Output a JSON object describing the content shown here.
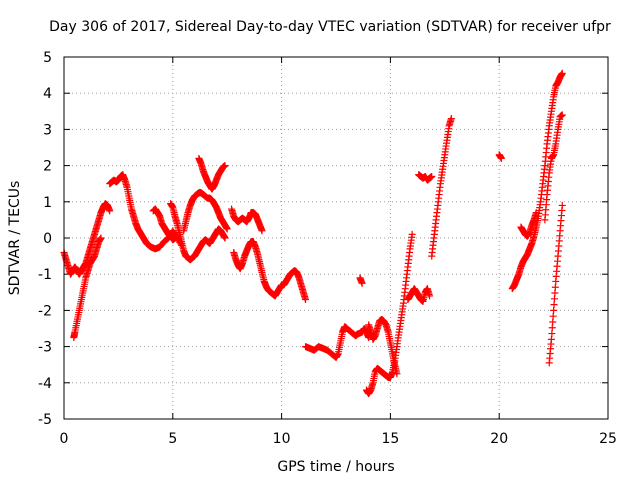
{
  "chart_data": {
    "type": "scatter",
    "title": "Day 306 of 2017, Sidereal Day-to-day VTEC variation (SDTVAR) for receiver ufpr",
    "xlabel": "GPS time / hours",
    "ylabel": "SDTVAR / TECUs",
    "xlim": [
      0,
      25
    ],
    "ylim": [
      -5,
      5
    ],
    "xticks": [
      0,
      5,
      10,
      15,
      20,
      25
    ],
    "yticks": [
      -5,
      -4,
      -3,
      -2,
      -1,
      0,
      1,
      2,
      3,
      4,
      5
    ],
    "grid": true,
    "marker": "plus",
    "color": "#ff0000",
    "segments": [
      [
        [
          0.0,
          -0.4
        ],
        [
          0.1,
          -0.6
        ],
        [
          0.2,
          -0.8
        ],
        [
          0.3,
          -1.0
        ],
        [
          0.4,
          -0.9
        ],
        [
          0.5,
          -0.8
        ],
        [
          0.6,
          -0.9
        ],
        [
          0.7,
          -1.0
        ],
        [
          0.8,
          -0.9
        ],
        [
          0.9,
          -0.8
        ],
        [
          1.0,
          -0.7
        ],
        [
          1.1,
          -0.5
        ],
        [
          1.2,
          -0.3
        ],
        [
          1.3,
          -0.1
        ],
        [
          1.4,
          0.1
        ],
        [
          1.5,
          0.3
        ],
        [
          1.6,
          0.5
        ],
        [
          1.7,
          0.7
        ],
        [
          1.8,
          0.85
        ],
        [
          1.9,
          0.95
        ],
        [
          2.0,
          0.9
        ],
        [
          2.1,
          0.75
        ]
      ],
      [
        [
          0.45,
          -2.75
        ],
        [
          0.5,
          -2.6
        ],
        [
          0.6,
          -2.3
        ],
        [
          0.7,
          -2.0
        ],
        [
          0.8,
          -1.7
        ],
        [
          0.9,
          -1.4
        ],
        [
          1.0,
          -1.1
        ],
        [
          1.1,
          -0.9
        ],
        [
          1.2,
          -0.7
        ],
        [
          1.3,
          -0.6
        ],
        [
          1.4,
          -0.5
        ],
        [
          1.5,
          -0.3
        ],
        [
          1.6,
          -0.1
        ],
        [
          1.7,
          0.0
        ]
      ],
      [
        [
          2.1,
          1.5
        ],
        [
          2.2,
          1.55
        ],
        [
          2.3,
          1.6
        ],
        [
          2.4,
          1.55
        ],
        [
          2.5,
          1.6
        ],
        [
          2.6,
          1.7
        ],
        [
          2.7,
          1.75
        ],
        [
          2.8,
          1.6
        ],
        [
          2.9,
          1.4
        ],
        [
          3.0,
          1.1
        ],
        [
          3.1,
          0.8
        ],
        [
          3.2,
          0.6
        ],
        [
          3.3,
          0.4
        ],
        [
          3.4,
          0.25
        ],
        [
          3.5,
          0.15
        ],
        [
          3.6,
          0.05
        ],
        [
          3.7,
          -0.05
        ],
        [
          3.8,
          -0.15
        ],
        [
          3.9,
          -0.2
        ],
        [
          4.0,
          -0.25
        ],
        [
          4.2,
          -0.3
        ],
        [
          4.4,
          -0.25
        ],
        [
          4.6,
          -0.1
        ],
        [
          4.8,
          0.0
        ],
        [
          5.0,
          0.2
        ],
        [
          5.2,
          0.0
        ],
        [
          5.4,
          -0.2
        ]
      ],
      [
        [
          4.1,
          0.75
        ],
        [
          4.2,
          0.8
        ],
        [
          4.3,
          0.7
        ],
        [
          4.4,
          0.6
        ],
        [
          4.5,
          0.4
        ],
        [
          4.6,
          0.3
        ],
        [
          4.7,
          0.2
        ],
        [
          4.8,
          0.1
        ],
        [
          4.9,
          0.05
        ],
        [
          5.0,
          -0.05
        ],
        [
          5.1,
          0.0
        ],
        [
          5.2,
          0.05
        ]
      ],
      [
        [
          4.9,
          0.95
        ],
        [
          5.0,
          0.85
        ],
        [
          5.1,
          0.6
        ],
        [
          5.2,
          0.4
        ],
        [
          5.3,
          0.15
        ],
        [
          5.4,
          -0.1
        ],
        [
          5.5,
          -0.35
        ],
        [
          5.6,
          -0.5
        ],
        [
          5.7,
          -0.55
        ],
        [
          5.8,
          -0.6
        ],
        [
          5.9,
          -0.55
        ],
        [
          6.0,
          -0.5
        ],
        [
          6.1,
          -0.4
        ],
        [
          6.2,
          -0.3
        ],
        [
          6.3,
          -0.2
        ],
        [
          6.4,
          -0.1
        ],
        [
          6.5,
          -0.05
        ],
        [
          6.6,
          -0.1
        ],
        [
          6.7,
          -0.15
        ],
        [
          6.8,
          -0.05
        ],
        [
          6.9,
          0.05
        ],
        [
          7.0,
          0.15
        ],
        [
          7.1,
          0.25
        ],
        [
          7.2,
          0.2
        ],
        [
          7.3,
          0.1
        ],
        [
          7.4,
          0.0
        ]
      ],
      [
        [
          5.5,
          0.2
        ],
        [
          5.6,
          0.45
        ],
        [
          5.7,
          0.7
        ],
        [
          5.8,
          0.9
        ],
        [
          5.9,
          1.05
        ],
        [
          6.0,
          1.15
        ],
        [
          6.1,
          1.2
        ],
        [
          6.2,
          1.25
        ],
        [
          6.3,
          1.25
        ],
        [
          6.4,
          1.2
        ],
        [
          6.5,
          1.15
        ],
        [
          6.6,
          1.1
        ],
        [
          6.7,
          1.1
        ],
        [
          6.8,
          1.05
        ],
        [
          6.9,
          0.95
        ],
        [
          7.0,
          0.85
        ],
        [
          7.1,
          0.7
        ],
        [
          7.2,
          0.55
        ],
        [
          7.3,
          0.45
        ],
        [
          7.4,
          0.35
        ],
        [
          7.5,
          0.25
        ]
      ],
      [
        [
          6.2,
          2.2
        ],
        [
          6.3,
          2.05
        ],
        [
          6.4,
          1.85
        ],
        [
          6.5,
          1.7
        ],
        [
          6.6,
          1.55
        ],
        [
          6.7,
          1.45
        ],
        [
          6.8,
          1.35
        ],
        [
          6.9,
          1.45
        ],
        [
          7.0,
          1.6
        ],
        [
          7.1,
          1.75
        ],
        [
          7.2,
          1.85
        ],
        [
          7.3,
          1.95
        ],
        [
          7.4,
          2.0
        ]
      ],
      [
        [
          7.7,
          0.8
        ],
        [
          7.8,
          0.6
        ],
        [
          7.9,
          0.5
        ],
        [
          8.0,
          0.45
        ],
        [
          8.1,
          0.5
        ],
        [
          8.2,
          0.55
        ],
        [
          8.3,
          0.5
        ],
        [
          8.4,
          0.45
        ],
        [
          8.5,
          0.55
        ],
        [
          8.6,
          0.7
        ],
        [
          8.7,
          0.7
        ],
        [
          8.8,
          0.65
        ],
        [
          8.9,
          0.5
        ],
        [
          9.0,
          0.35
        ],
        [
          9.1,
          0.2
        ]
      ],
      [
        [
          7.8,
          -0.4
        ],
        [
          7.9,
          -0.6
        ],
        [
          8.0,
          -0.75
        ],
        [
          8.1,
          -0.85
        ],
        [
          8.2,
          -0.7
        ],
        [
          8.3,
          -0.5
        ],
        [
          8.4,
          -0.35
        ],
        [
          8.5,
          -0.2
        ],
        [
          8.6,
          -0.1
        ],
        [
          8.7,
          -0.1
        ],
        [
          8.8,
          -0.25
        ],
        [
          8.9,
          -0.45
        ],
        [
          9.0,
          -0.7
        ],
        [
          9.1,
          -0.95
        ],
        [
          9.2,
          -1.2
        ],
        [
          9.3,
          -1.35
        ],
        [
          9.4,
          -1.45
        ],
        [
          9.5,
          -1.5
        ],
        [
          9.6,
          -1.55
        ],
        [
          9.7,
          -1.6
        ],
        [
          9.8,
          -1.5
        ],
        [
          9.9,
          -1.4
        ],
        [
          10.0,
          -1.3
        ],
        [
          10.1,
          -1.3
        ],
        [
          10.2,
          -1.2
        ],
        [
          10.3,
          -1.1
        ],
        [
          10.4,
          -1.0
        ],
        [
          10.5,
          -0.95
        ],
        [
          10.6,
          -0.9
        ],
        [
          10.7,
          -0.95
        ],
        [
          10.8,
          -1.1
        ],
        [
          10.9,
          -1.3
        ],
        [
          11.0,
          -1.5
        ],
        [
          11.1,
          -1.7
        ]
      ],
      [
        [
          11.1,
          -3.0
        ],
        [
          11.3,
          -3.05
        ],
        [
          11.5,
          -3.1
        ],
        [
          11.7,
          -3.0
        ],
        [
          11.9,
          -3.05
        ],
        [
          12.1,
          -3.1
        ],
        [
          12.3,
          -3.2
        ],
        [
          12.5,
          -3.3
        ],
        [
          12.6,
          -3.2
        ],
        [
          12.7,
          -2.9
        ],
        [
          12.8,
          -2.6
        ],
        [
          12.9,
          -2.45
        ],
        [
          13.0,
          -2.5
        ],
        [
          13.2,
          -2.6
        ],
        [
          13.4,
          -2.7
        ],
        [
          13.5,
          -2.65
        ],
        [
          13.7,
          -2.6
        ],
        [
          13.8,
          -2.5
        ],
        [
          13.9,
          -2.6
        ],
        [
          14.0,
          -2.75
        ]
      ],
      [
        [
          13.6,
          -1.1
        ],
        [
          13.7,
          -1.25
        ]
      ],
      [
        [
          13.9,
          -4.2
        ],
        [
          14.0,
          -4.3
        ],
        [
          14.1,
          -4.2
        ],
        [
          14.2,
          -4.0
        ],
        [
          14.3,
          -3.7
        ],
        [
          14.4,
          -3.6
        ],
        [
          14.5,
          -3.65
        ],
        [
          14.6,
          -3.7
        ],
        [
          14.7,
          -3.75
        ],
        [
          14.8,
          -3.8
        ],
        [
          14.9,
          -3.85
        ],
        [
          15.0,
          -3.85
        ],
        [
          15.1,
          -3.7
        ],
        [
          15.2,
          -3.4
        ],
        [
          15.3,
          -3.0
        ],
        [
          15.4,
          -2.6
        ],
        [
          15.5,
          -2.2
        ],
        [
          15.6,
          -1.8
        ],
        [
          15.7,
          -1.3
        ],
        [
          15.8,
          -0.8
        ],
        [
          15.9,
          -0.3
        ],
        [
          16.0,
          0.1
        ]
      ],
      [
        [
          14.0,
          -2.4
        ],
        [
          14.1,
          -2.6
        ],
        [
          14.2,
          -2.8
        ],
        [
          14.3,
          -2.7
        ],
        [
          14.4,
          -2.5
        ],
        [
          14.5,
          -2.3
        ],
        [
          14.6,
          -2.25
        ],
        [
          14.7,
          -2.3
        ],
        [
          14.8,
          -2.4
        ],
        [
          14.9,
          -2.6
        ],
        [
          15.0,
          -2.9
        ],
        [
          15.1,
          -3.2
        ],
        [
          15.2,
          -3.5
        ],
        [
          15.3,
          -3.75
        ]
      ],
      [
        [
          15.8,
          -1.7
        ],
        [
          15.9,
          -1.6
        ],
        [
          16.0,
          -1.5
        ],
        [
          16.1,
          -1.4
        ],
        [
          16.2,
          -1.5
        ],
        [
          16.3,
          -1.6
        ],
        [
          16.4,
          -1.7
        ],
        [
          16.5,
          -1.75
        ],
        [
          16.6,
          -1.5
        ],
        [
          16.7,
          -1.4
        ],
        [
          16.8,
          -1.6
        ]
      ],
      [
        [
          16.3,
          1.75
        ],
        [
          16.4,
          1.7
        ],
        [
          16.5,
          1.65
        ],
        [
          16.6,
          1.7
        ],
        [
          16.7,
          1.6
        ],
        [
          16.8,
          1.65
        ],
        [
          16.9,
          1.7
        ]
      ],
      [
        [
          16.9,
          -0.5
        ],
        [
          17.0,
          0.0
        ],
        [
          17.1,
          0.5
        ],
        [
          17.2,
          1.0
        ],
        [
          17.3,
          1.5
        ],
        [
          17.4,
          1.9
        ],
        [
          17.5,
          2.3
        ],
        [
          17.6,
          2.7
        ],
        [
          17.7,
          3.1
        ],
        [
          17.8,
          3.3
        ]
      ],
      [
        [
          20.0,
          2.3
        ],
        [
          20.1,
          2.2
        ]
      ],
      [
        [
          20.6,
          -1.4
        ],
        [
          20.7,
          -1.3
        ],
        [
          20.8,
          -1.15
        ],
        [
          20.9,
          -1.0
        ],
        [
          21.0,
          -0.8
        ],
        [
          21.1,
          -0.65
        ],
        [
          21.2,
          -0.55
        ],
        [
          21.3,
          -0.45
        ],
        [
          21.4,
          -0.3
        ],
        [
          21.5,
          -0.15
        ],
        [
          21.6,
          0.05
        ],
        [
          21.7,
          0.3
        ],
        [
          21.8,
          0.6
        ],
        [
          21.9,
          1.0
        ],
        [
          22.0,
          1.5
        ],
        [
          22.1,
          2.0
        ],
        [
          22.2,
          2.6
        ],
        [
          22.3,
          3.1
        ],
        [
          22.4,
          3.5
        ],
        [
          22.5,
          3.9
        ],
        [
          22.6,
          4.2
        ],
        [
          22.7,
          4.3
        ],
        [
          22.8,
          4.45
        ],
        [
          22.9,
          4.55
        ]
      ],
      [
        [
          21.0,
          0.3
        ],
        [
          21.1,
          0.2
        ],
        [
          21.2,
          0.1
        ],
        [
          21.3,
          0.05
        ],
        [
          21.4,
          0.15
        ],
        [
          21.5,
          0.35
        ],
        [
          21.6,
          0.5
        ],
        [
          21.7,
          0.7
        ]
      ],
      [
        [
          22.1,
          0.5
        ],
        [
          22.2,
          1.2
        ],
        [
          22.3,
          1.8
        ],
        [
          22.4,
          2.2
        ],
        [
          22.5,
          2.3
        ],
        [
          22.6,
          2.6
        ],
        [
          22.7,
          3.0
        ],
        [
          22.8,
          3.35
        ],
        [
          22.9,
          3.4
        ]
      ],
      [
        [
          22.3,
          -3.45
        ],
        [
          22.4,
          -2.8
        ],
        [
          22.5,
          -2.0
        ],
        [
          22.6,
          -1.2
        ],
        [
          22.7,
          -0.5
        ],
        [
          22.8,
          0.2
        ],
        [
          22.9,
          0.9
        ]
      ]
    ]
  }
}
